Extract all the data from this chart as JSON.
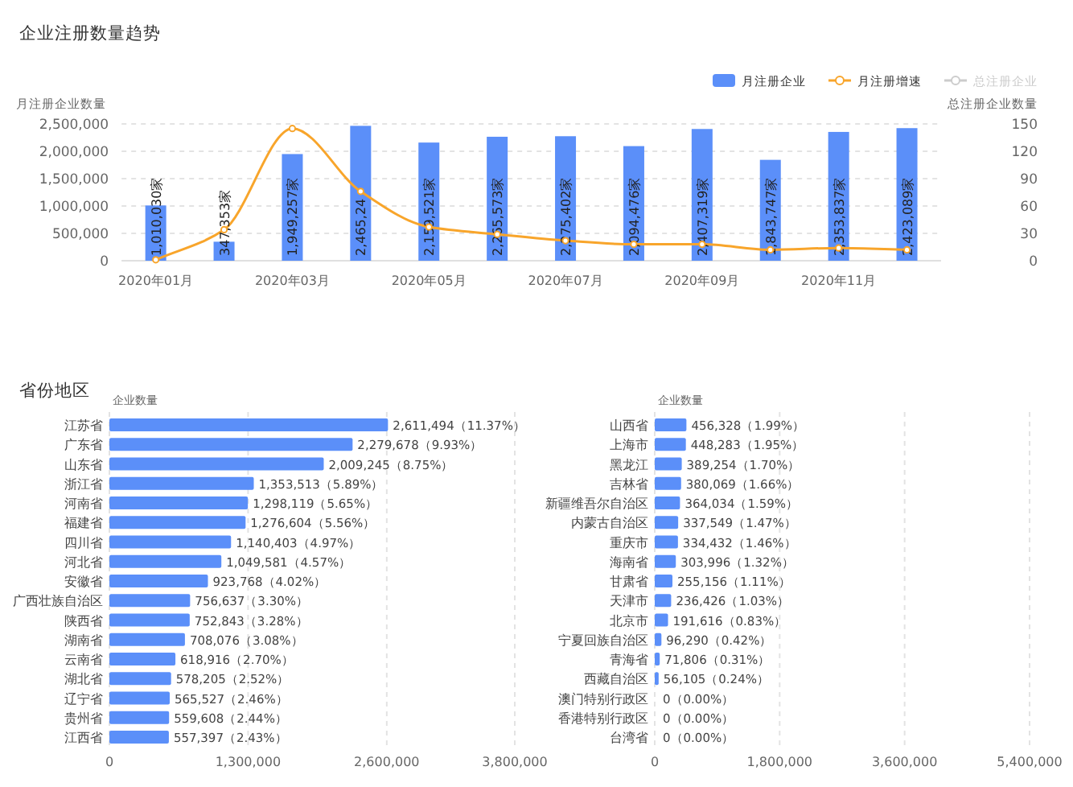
{
  "chart_data": [
    {
      "type": "bar",
      "title": "企业注册数量趋势",
      "ylabel": "月注册企业数量",
      "y2label": "总注册企业数量",
      "categories": [
        "2020年01月",
        null,
        "2020年03月",
        null,
        "2020年05月",
        null,
        "2020年07月",
        null,
        "2020年09月",
        null,
        "2020年11月",
        null
      ],
      "ylim": [
        0,
        2500000
      ],
      "yticks": [
        0,
        {
          "value": 500000,
          "label": "500,000"
        },
        {
          "value": 1000000,
          "label": "1,000,000"
        },
        {
          "value": 1500000,
          "label": "1,500,000"
        },
        {
          "value": 2000000,
          "label": "2,000,000"
        },
        {
          "value": 2500000,
          "label": "2,500,000"
        }
      ],
      "y2lim": [
        0,
        150
      ],
      "y2ticks": [
        0,
        30,
        60,
        90,
        120,
        150
      ],
      "grid": "y",
      "legend": "top right",
      "marker": "circle",
      "series": [
        {
          "name": "月注册企业",
          "type": "bar",
          "color": "#5b8ff9",
          "values": [
            1010030,
            347353,
            1949257,
            2465000,
            2159521,
            2265573,
            2275402,
            2094476,
            2407319,
            1843747,
            2353837,
            2423089
          ],
          "value_labels": [
            "1,010,030家",
            "347,353家",
            "1,949,257家",
            "2,465,24",
            "2,159,521家",
            "2,265,573家",
            "2,275,402家",
            "2,094,476家",
            "2,407,319家",
            "1,843,747家",
            "2,353,837家",
            "2,423,089家"
          ]
        },
        {
          "name": "月注册增速",
          "type": "line",
          "axis": "y2",
          "color": "#f8a52b",
          "values": [
            1,
            34,
            145,
            76,
            37,
            29,
            22,
            18,
            18,
            12,
            14,
            12
          ]
        },
        {
          "name": "总注册企业",
          "type": "line",
          "axis": "y2",
          "color": "#cccccc",
          "values": [
            null,
            null,
            null,
            null,
            null,
            null,
            null,
            null,
            null,
            null,
            null,
            null
          ]
        }
      ]
    },
    {
      "type": "bar",
      "orientation": "horizontal",
      "title": "省份地区",
      "ylabel": "企业数量",
      "color": "#5b8ff9",
      "grid": "x",
      "categories": [
        "江苏省",
        "广东省",
        "山东省",
        "浙江省",
        "河南省",
        "福建省",
        "四川省",
        "河北省",
        "安徽省",
        "广西壮族自治区",
        "陕西省",
        "湖南省",
        "云南省",
        "湖北省",
        "辽宁省",
        "贵州省",
        "江西省"
      ],
      "values": [
        2611494,
        2279678,
        2009245,
        1353513,
        1298119,
        1276604,
        1140403,
        1049581,
        923768,
        756637,
        752843,
        708076,
        618916,
        578205,
        565527,
        559608,
        557397
      ],
      "value_labels": [
        "2,611,494（11.37%）",
        "2,279,678（9.93%）",
        "2,009,245（8.75%）",
        "1,353,513（5.89%）",
        "1,298,119（5.65%）",
        "1,276,604（5.56%）",
        "1,140,403（4.97%）",
        "1,049,581（4.57%）",
        "923,768（4.02%）",
        "756,637（3.30%）",
        "752,843（3.28%）",
        "708,076（3.08%）",
        "618,916（2.70%）",
        "578,205（2.52%）",
        "565,527（2.46%）",
        "559,608（2.44%）",
        "557,397（2.43%）"
      ],
      "xlim": [
        0,
        3800000
      ],
      "xticks": [
        0,
        {
          "value": 1300000,
          "label": "1,300,000"
        },
        {
          "value": 2600000,
          "label": "2,600,000"
        },
        {
          "value": 3800000,
          "label": "3,800,000"
        }
      ]
    },
    {
      "type": "bar",
      "orientation": "horizontal",
      "ylabel": "企业数量",
      "color": "#5b8ff9",
      "grid": "x",
      "categories": [
        "山西省",
        "上海市",
        "黑龙江",
        "吉林省",
        "新疆维吾尔自治区",
        "内蒙古自治区",
        "重庆市",
        "海南省",
        "甘肃省",
        "天津市",
        "北京市",
        "宁夏回族自治区",
        "青海省",
        "西藏自治区",
        "澳门特别行政区",
        "香港特别行政区",
        "台湾省"
      ],
      "values": [
        456328,
        448283,
        389254,
        380069,
        364034,
        337549,
        334432,
        303996,
        255156,
        236426,
        191616,
        96290,
        71806,
        56105,
        0,
        0,
        0
      ],
      "value_labels": [
        "456,328（1.99%）",
        "448,283（1.95%）",
        "389,254（1.70%）",
        "380,069（1.66%）",
        "364,034（1.59%）",
        "337,549（1.47%）",
        "334,432（1.46%）",
        "303,996（1.32%）",
        "255,156（1.11%）",
        "236,426（1.03%）",
        "191,616（0.83%）",
        "96,290（0.42%）",
        "71,806（0.31%）",
        "56,105（0.24%）",
        "0（0.00%）",
        "0（0.00%）",
        "0（0.00%）"
      ],
      "xlim": [
        0,
        5400000
      ],
      "xticks": [
        0,
        {
          "value": 1800000,
          "label": "1,800,000"
        },
        {
          "value": 3600000,
          "label": "3,600,000"
        },
        {
          "value": 5400000,
          "label": "5,400,000"
        }
      ]
    }
  ]
}
